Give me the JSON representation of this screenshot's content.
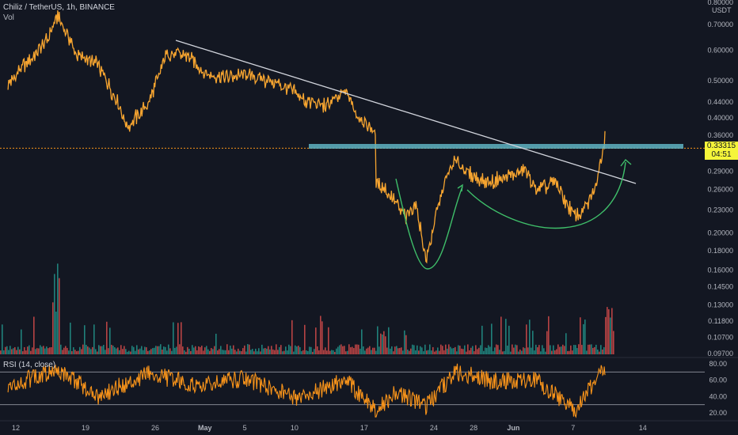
{
  "header": {
    "symbol": "Chiliz / TetherUS, 1h, BINANCE",
    "volume_label": "Vol",
    "rsi_label": "RSI (14, close)"
  },
  "price_badge": {
    "price": "0.33315",
    "countdown": "04:51"
  },
  "currency": "USDT",
  "colors": {
    "background": "#131722",
    "candle": "#f7a530",
    "rsi_line": "#f7931a",
    "trendline": "#d1d4dc",
    "zone": "#5fb3c2",
    "curve": "#3fbf6a",
    "vol_up": "#26a69a",
    "vol_down": "#ef5350",
    "price_line": "#f7931a"
  },
  "chart_data": [
    {
      "type": "line",
      "title": "Chiliz / TetherUS, 1h, BINANCE",
      "scale": "log",
      "y_ticks": [
        "0.80000",
        "0.70000",
        "0.60000",
        "0.50000",
        "0.44000",
        "0.40000",
        "0.36000",
        "0.32000",
        "0.29000",
        "0.26000",
        "0.23000",
        "0.20000",
        "0.18000",
        "0.16000",
        "0.14500",
        "0.13000",
        "0.11800",
        "0.10700",
        "0.09700"
      ],
      "x_ticks": [
        "12",
        "19",
        "26",
        "May",
        "5",
        "10",
        "17",
        "24",
        "28",
        "Jun",
        "7",
        "14"
      ],
      "series": [
        {
          "x": [
            "Apr 12",
            "Apr 14",
            "Apr 16",
            "Apr 17",
            "Apr 19",
            "Apr 21",
            "Apr 23",
            "Apr 24",
            "Apr 26",
            "Apr 28",
            "Apr 30",
            "May 2",
            "May 4",
            "May 6",
            "May 8",
            "May 10",
            "May 12",
            "May 14",
            "May 16",
            "May 17",
            "May 19",
            "May 19",
            "May 20",
            "May 22",
            "May 23",
            "May 24",
            "May 25",
            "May 26",
            "May 27",
            "May 28",
            "May 30",
            "Jun 1",
            "Jun 3",
            "Jun 4",
            "Jun 6",
            "Jun 8",
            "Jun 9",
            "Jun 10",
            "Jun 11",
            "Jun 11"
          ],
          "values": [
            0.49,
            0.56,
            0.64,
            0.74,
            0.58,
            0.55,
            0.44,
            0.38,
            0.43,
            0.59,
            0.58,
            0.52,
            0.51,
            0.52,
            0.5,
            0.48,
            0.44,
            0.43,
            0.47,
            0.41,
            0.36,
            0.27,
            0.26,
            0.22,
            0.24,
            0.17,
            0.22,
            0.28,
            0.31,
            0.29,
            0.27,
            0.28,
            0.29,
            0.26,
            0.27,
            0.22,
            0.23,
            0.26,
            0.36,
            0.333
          ]
        }
      ],
      "last_price": 0.33315,
      "annotations": [
        "descending trendline",
        "resistance zone",
        "cup and handle curve"
      ]
    },
    {
      "type": "bar",
      "title": "Vol",
      "note": "hourly volume histogram, spikes around Apr 17, May 19 and Jun 11"
    },
    {
      "type": "line",
      "title": "RSI (14, close)",
      "y_ticks": [
        "80.00",
        "60.00",
        "40.00",
        "20.00"
      ],
      "bands": [
        70,
        30
      ],
      "x": [
        "Apr 12",
        "Apr 17",
        "Apr 21",
        "Apr 26",
        "May 1",
        "May 6",
        "May 11",
        "May 16",
        "May 19",
        "May 21",
        "May 24",
        "May 27",
        "May 31",
        "Jun 4",
        "Jun 8",
        "Jun 11"
      ],
      "values": [
        52,
        74,
        40,
        68,
        55,
        62,
        38,
        60,
        22,
        45,
        28,
        70,
        58,
        60,
        24,
        74
      ]
    }
  ]
}
